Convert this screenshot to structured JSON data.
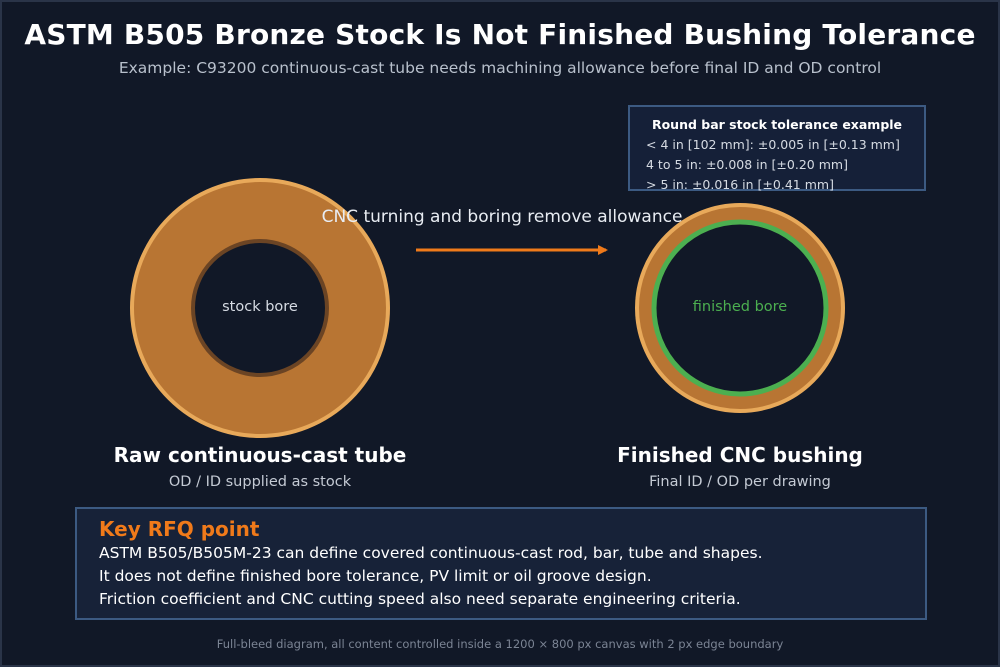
{
  "title": "ASTM B505 Bronze Stock Is Not Finished Bushing Tolerance",
  "subtitle": "Example: C93200 continuous-cast tube needs machining allowance before final ID and OD control",
  "tolerance_box": {
    "title": "Round bar stock tolerance example",
    "lines": [
      "< 4 in [102 mm]: ±0.005 in [±0.13 mm]",
      "4 to 5 in: ±0.008 in [±0.20 mm]",
      "> 5 in: ±0.016 in [±0.41 mm]"
    ]
  },
  "arrow_label": "CNC turning and boring remove allowance",
  "raw": {
    "bore_label": "stock bore",
    "caption": "Raw continuous-cast tube",
    "sub": "OD / ID supplied as stock"
  },
  "finished": {
    "bore_label": "finished bore",
    "caption": "Finished CNC bushing",
    "sub": "Final ID / OD per drawing"
  },
  "rfq": {
    "title": "Key RFQ point",
    "lines": [
      "ASTM B505/B505M-23 can define covered continuous-cast rod, bar, tube and shapes.",
      "It does not define finished bore tolerance, PV limit or oil groove design.",
      "Friction coefficient and CNC cutting speed also need separate engineering criteria."
    ]
  },
  "footer": "Full-bleed diagram, all content controlled inside a 1200 × 800 px canvas with 2 px edge boundary",
  "colors": {
    "background": "#111827",
    "bronze": "#b87533",
    "bronze_edge": "#e8a95a",
    "bore_edge": "#6b4424",
    "finished_bore_ring": "#4caf50",
    "accent_orange": "#f07a1a",
    "box_border": "#3c5a82"
  }
}
